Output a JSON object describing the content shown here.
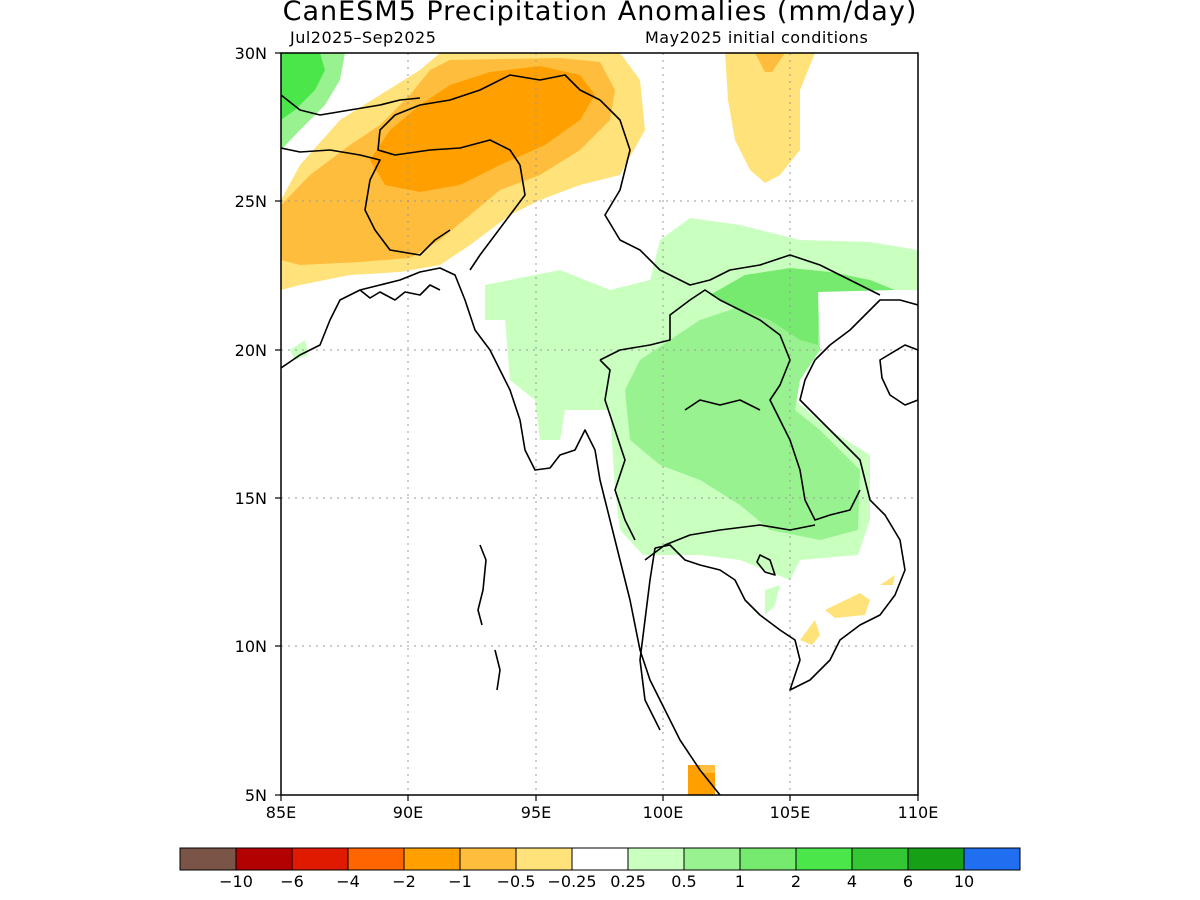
{
  "title": "CanESM5 Precipitation Anomalies (mm/day)",
  "subtitle_left": "Jul2025–Sep2025",
  "subtitle_right": "May2025 initial conditions",
  "lat_labels": [
    "30N",
    "25N",
    "20N",
    "15N",
    "10N",
    "5N"
  ],
  "lon_labels": [
    "85E",
    "90E",
    "95E",
    "100E",
    "105E",
    "110E"
  ],
  "colorbar": {
    "colors": [
      "#7a5447",
      "#b30000",
      "#e01a00",
      "#ff6600",
      "#ffa000",
      "#ffbd3d",
      "#ffe27a",
      "#ffffff",
      "#c9ffbf",
      "#99f290",
      "#75ea6e",
      "#4ae64a",
      "#34c734",
      "#16a016",
      "#1f6ff0"
    ],
    "tick_labels": [
      "−10",
      "−6",
      "−4",
      "−2",
      "−1",
      "−0.5",
      "−0.25",
      "0.25",
      "0.5",
      "1",
      "2",
      "4",
      "6",
      "10"
    ]
  }
}
